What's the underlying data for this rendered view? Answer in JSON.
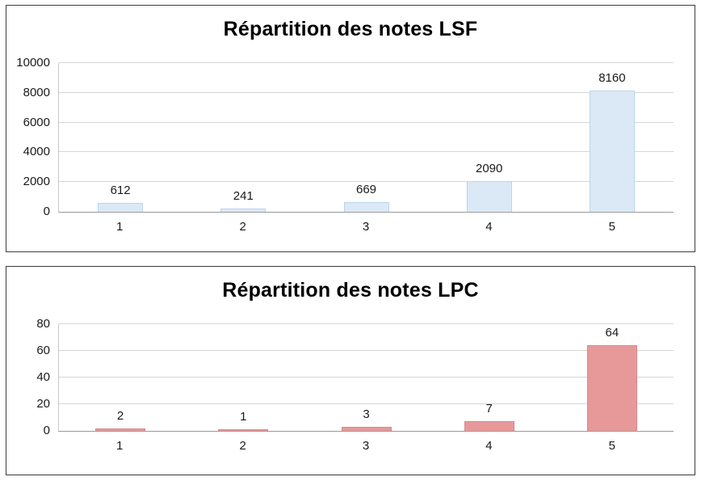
{
  "chart_data": [
    {
      "type": "bar",
      "title": "Répartition des notes LSF",
      "categories": [
        "1",
        "2",
        "3",
        "4",
        "5"
      ],
      "values": [
        612,
        241,
        669,
        2090,
        8160
      ],
      "data_labels": [
        "612",
        "241",
        "669",
        "2090",
        "8160"
      ],
      "xlabel": "",
      "ylabel": "",
      "ylim": [
        0,
        10000
      ],
      "ytick_interval": 2000,
      "ytick_labels": [
        "0",
        "2000",
        "4000",
        "6000",
        "8000",
        "10000"
      ],
      "grid": true,
      "legend": false,
      "bar_color": "#dbe9f6",
      "bar_border_color": "#b9d5ec"
    },
    {
      "type": "bar",
      "title": "Répartition des notes LPC",
      "categories": [
        "1",
        "2",
        "3",
        "4",
        "5"
      ],
      "values": [
        2,
        1,
        3,
        7,
        64
      ],
      "data_labels": [
        "2",
        "1",
        "3",
        "7",
        "64"
      ],
      "xlabel": "",
      "ylabel": "",
      "ylim": [
        0,
        80
      ],
      "ytick_interval": 20,
      "ytick_labels": [
        "0",
        "20",
        "40",
        "60",
        "80"
      ],
      "grid": true,
      "legend": false,
      "bar_color": "#e7999a",
      "bar_border_color": "#d8898b"
    }
  ]
}
